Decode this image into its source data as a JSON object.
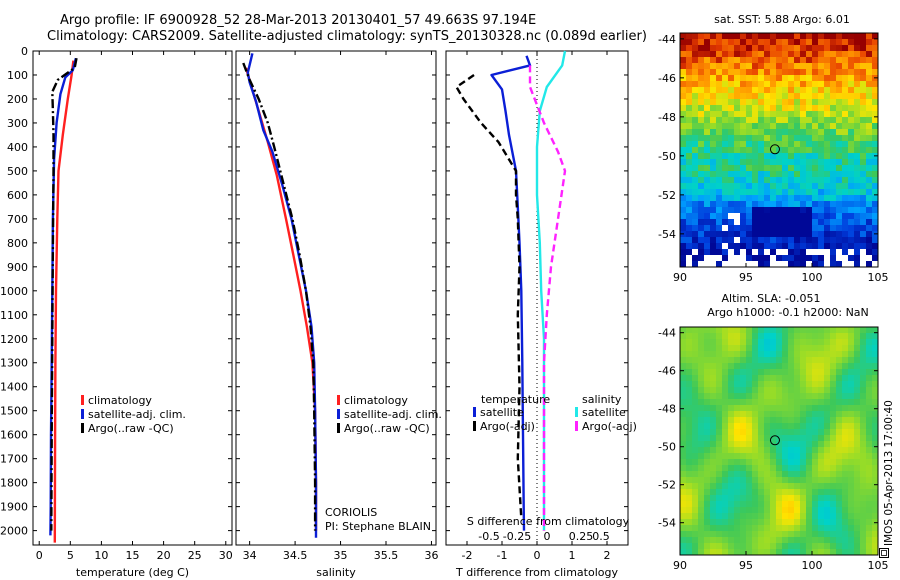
{
  "header": {
    "line1": "Argo profile: IF 6900928_52 28-Mar-2013 20130401_57 49.663S 97.194E",
    "line2": "Climatology: CARS2009. Satellite-adjusted climatology: synTS_20130328.nc (0.089d earlier)"
  },
  "colors": {
    "climatology": "#ff2020",
    "satellite": "#0b1fd6",
    "argo": "#000000",
    "sat_salinity": "#22e8e8",
    "argo_salinity": "#ff22ff",
    "zero_line": "#000000"
  },
  "depth_axis": {
    "ticks": [
      "0",
      "100",
      "200",
      "300",
      "400",
      "500",
      "600",
      "700",
      "800",
      "900",
      "1000",
      "1100",
      "1200",
      "1300",
      "1400",
      "1500",
      "1600",
      "1700",
      "1800",
      "1900",
      "2000"
    ],
    "range": [
      0,
      2060
    ]
  },
  "temperature_panel": {
    "xlabel": "temperature (deg C)",
    "xticks": [
      "0",
      "5",
      "10",
      "15",
      "20",
      "25",
      "30"
    ],
    "xlim": [
      -1,
      31
    ],
    "legend": [
      "climatology",
      "satellite-adj. clim.",
      "Argo(..raw -QC)"
    ]
  },
  "salinity_panel": {
    "xlabel": "salinity",
    "xticks": [
      "34",
      "34.5",
      "35",
      "35.5",
      "36"
    ],
    "xlim": [
      33.85,
      36.05
    ],
    "legend": [
      "climatology",
      "satellite-adj. clim.",
      "Argo(..raw -QC)"
    ],
    "source_note": [
      "CORIOLIS",
      "PI: Stephane BLAIN"
    ]
  },
  "difference_panel": {
    "top_label": "S difference from climatology",
    "top_ticks": [
      "-0.5",
      "-0.25",
      "0",
      "0.25",
      "0.5"
    ],
    "xlabel": "T difference from climatology",
    "xticks": [
      "-2",
      "-1",
      "0",
      "1",
      "2"
    ],
    "xlim": [
      -2.6,
      2.6
    ],
    "legend_temperature_title": "temperature",
    "legend_temperature": [
      "satellite",
      "Argo(-adj)"
    ],
    "legend_salinity_title": "salinity",
    "legend_salinity": [
      "satellite",
      "Argo(-adj)"
    ]
  },
  "sst_map": {
    "title": "sat. SST: 5.88 Argo: 6.01",
    "yticks": [
      "-44",
      "-46",
      "-48",
      "-50",
      "-52",
      "-54"
    ],
    "xticks": [
      "90",
      "95",
      "100",
      "105"
    ],
    "lon_range": [
      90,
      105
    ],
    "lat_range": [
      -55.7,
      -43.7
    ],
    "float_position": {
      "lon": 97.194,
      "lat": -49.663
    }
  },
  "sla_map": {
    "title_line1": "Altim. SLA: -0.051",
    "title_line2": "Argo h1000: -0.1 h2000: NaN",
    "yticks": [
      "-44",
      "-46",
      "-48",
      "-50",
      "-52",
      "-54"
    ],
    "xticks": [
      "90",
      "95",
      "100",
      "105"
    ],
    "lon_range": [
      90,
      105
    ],
    "lat_range": [
      -55.7,
      -43.7
    ],
    "float_position": {
      "lon": 97.194,
      "lat": -49.663
    }
  },
  "side_stamp": "IMOS 05-Apr-2013 17:00:40",
  "chart_data": [
    {
      "type": "line",
      "xlabel": "temperature (deg C)",
      "ylabel": "",
      "xlim": [
        -1,
        31
      ],
      "ylim": [
        2060,
        0
      ],
      "series": [
        {
          "name": "climatology",
          "points": [
            [
              5.5,
              40
            ],
            [
              5.2,
              100
            ],
            [
              4.6,
              200
            ],
            [
              3.8,
              350
            ],
            [
              3.1,
              500
            ],
            [
              2.9,
              700
            ],
            [
              2.7,
              1000
            ],
            [
              2.6,
              1300
            ],
            [
              2.55,
              1600
            ],
            [
              2.5,
              2050
            ]
          ]
        },
        {
          "name": "satellite-adj. clim.",
          "points": [
            [
              5.9,
              30
            ],
            [
              5.4,
              80
            ],
            [
              4.2,
              110
            ],
            [
              3.4,
              180
            ],
            [
              2.8,
              300
            ],
            [
              2.4,
              450
            ],
            [
              2.2,
              700
            ],
            [
              2.1,
              1000
            ],
            [
              2.0,
              1300
            ],
            [
              1.9,
              1600
            ],
            [
              1.85,
              1900
            ],
            [
              1.8,
              2020
            ]
          ]
        },
        {
          "name": "Argo(..raw -QC)",
          "points": [
            [
              6.0,
              30
            ],
            [
              5.7,
              70
            ],
            [
              3.0,
              120
            ],
            [
              2.1,
              170
            ],
            [
              2.2,
              250
            ],
            [
              2.3,
              350
            ],
            [
              2.3,
              500
            ],
            [
              2.2,
              800
            ],
            [
              2.1,
              1200
            ],
            [
              2.0,
              1600
            ],
            [
              1.95,
              2000
            ]
          ]
        }
      ]
    },
    {
      "type": "line",
      "xlabel": "salinity",
      "ylabel": "",
      "xlim": [
        33.85,
        36.05
      ],
      "ylim": [
        2060,
        0
      ],
      "series": [
        {
          "name": "climatology",
          "points": [
            [
              33.96,
              70
            ],
            [
              34.02,
              150
            ],
            [
              34.1,
              250
            ],
            [
              34.2,
              380
            ],
            [
              34.3,
              520
            ],
            [
              34.4,
              700
            ],
            [
              34.48,
              850
            ],
            [
              34.56,
              1000
            ],
            [
              34.63,
              1150
            ],
            [
              34.69,
              1300
            ],
            [
              34.72,
              1500
            ],
            [
              34.73,
              1800
            ],
            [
              34.73,
              2000
            ]
          ]
        },
        {
          "name": "satellite-adj. clim.",
          "points": [
            [
              34.03,
              10
            ],
            [
              33.98,
              90
            ],
            [
              34.0,
              130
            ],
            [
              34.07,
              210
            ],
            [
              34.15,
              330
            ],
            [
              34.25,
              420
            ],
            [
              34.36,
              560
            ],
            [
              34.46,
              700
            ],
            [
              34.54,
              850
            ],
            [
              34.62,
              1000
            ],
            [
              34.68,
              1150
            ],
            [
              34.71,
              1300
            ],
            [
              34.72,
              1500
            ],
            [
              34.73,
              1800
            ],
            [
              34.73,
              2030
            ]
          ]
        },
        {
          "name": "Argo(..raw -QC)",
          "points": [
            [
              33.93,
              50
            ],
            [
              34.0,
              120
            ],
            [
              34.1,
              200
            ],
            [
              34.2,
              300
            ],
            [
              34.27,
              400
            ],
            [
              34.37,
              550
            ],
            [
              34.47,
              700
            ],
            [
              34.55,
              850
            ],
            [
              34.62,
              1000
            ],
            [
              34.67,
              1150
            ],
            [
              34.7,
              1300
            ],
            [
              34.71,
              1500
            ],
            [
              34.72,
              1800
            ],
            [
              34.72,
              2000
            ]
          ]
        }
      ]
    },
    {
      "type": "line",
      "xlabel": "T difference from climatology",
      "ylabel": "",
      "xlim": [
        -2.6,
        2.6
      ],
      "ylim": [
        2060,
        0
      ],
      "series": [
        {
          "name": "satellite",
          "variable": "temperature",
          "points": [
            [
              -0.3,
              20
            ],
            [
              -0.2,
              60
            ],
            [
              -1.3,
              100
            ],
            [
              -1.0,
              160
            ],
            [
              -0.9,
              250
            ],
            [
              -0.8,
              350
            ],
            [
              -0.6,
              500
            ],
            [
              -0.55,
              650
            ],
            [
              -0.5,
              800
            ],
            [
              -0.45,
              1000
            ],
            [
              -0.42,
              1300
            ],
            [
              -0.4,
              1600
            ],
            [
              -0.38,
              1900
            ],
            [
              -0.37,
              2000
            ]
          ]
        },
        {
          "name": "Argo(-adj)",
          "variable": "temperature",
          "points": [
            [
              -1.8,
              100
            ],
            [
              -2.3,
              150
            ],
            [
              -2.1,
              200
            ],
            [
              -1.6,
              300
            ],
            [
              -1.1,
              380
            ],
            [
              -0.6,
              500
            ],
            [
              -0.6,
              600
            ],
            [
              -0.55,
              700
            ],
            [
              -0.5,
              900
            ],
            [
              -0.55,
              1100
            ],
            [
              -0.5,
              1400
            ],
            [
              -0.55,
              1700
            ],
            [
              -0.45,
              1950
            ]
          ]
        },
        {
          "name": "satellite",
          "variable": "salinity",
          "points": [
            [
              0.2,
              0
            ],
            [
              0.18,
              60
            ],
            [
              0.07,
              150
            ],
            [
              0.02,
              250
            ],
            [
              0.0,
              400
            ],
            [
              0.0,
              600
            ],
            [
              0.02,
              800
            ],
            [
              0.03,
              1000
            ],
            [
              0.05,
              1200
            ],
            [
              0.05,
              1400
            ],
            [
              0.05,
              1600
            ],
            [
              0.05,
              1800
            ],
            [
              0.05,
              2000
            ]
          ]
        },
        {
          "name": "Argo(-adj)",
          "variable": "salinity",
          "points": [
            [
              -0.05,
              60
            ],
            [
              -0.05,
              150
            ],
            [
              0.05,
              300
            ],
            [
              0.15,
              420
            ],
            [
              0.2,
              500
            ],
            [
              0.15,
              700
            ],
            [
              0.1,
              900
            ],
            [
              0.07,
              1100
            ],
            [
              0.05,
              1300
            ],
            [
              0.05,
              1500
            ],
            [
              0.05,
              1700
            ],
            [
              0.05,
              2000
            ]
          ]
        }
      ]
    }
  ]
}
